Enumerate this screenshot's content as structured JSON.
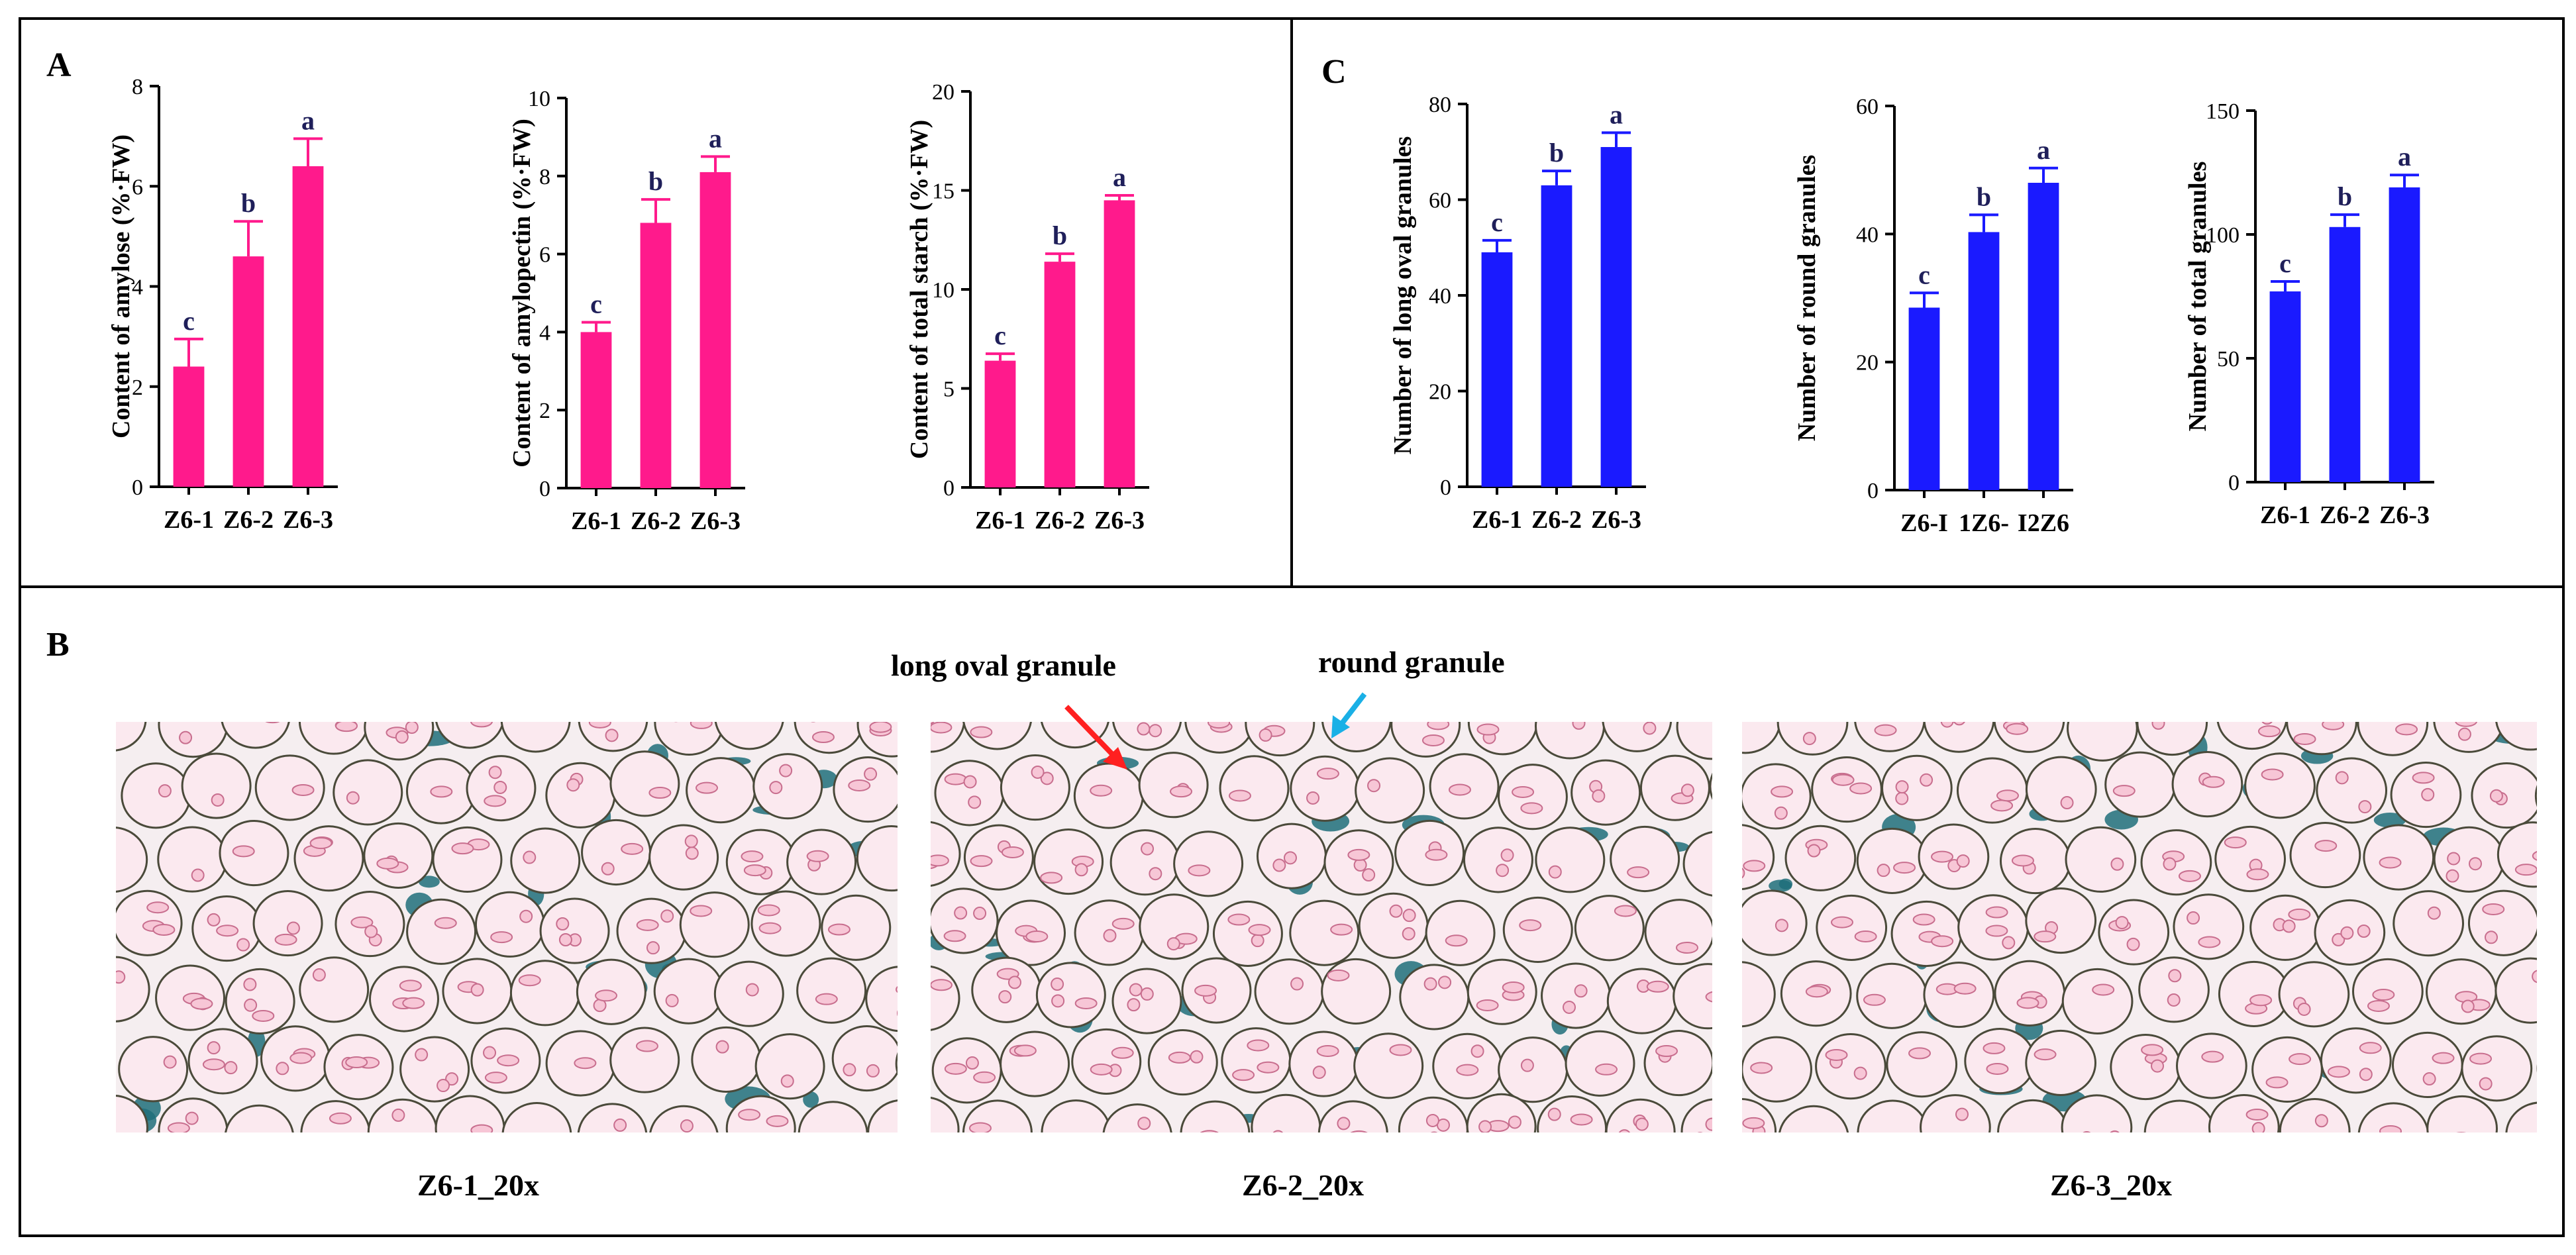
{
  "panels": {
    "A": "A",
    "B": "B",
    "C": "C"
  },
  "colors": {
    "panel_a_bars": "#ff1a8c",
    "panel_c_bars": "#1a1aff",
    "sig_letters": "#1f1f5a",
    "red_arrow": "#ff2020",
    "cyan_arrow": "#1ab0e6"
  },
  "chart_data": [
    {
      "type": "bar",
      "panel": "A",
      "ylabel": "Content of amylose (%·FW)",
      "categories": [
        "Z6-1",
        "Z6-2",
        "Z6-3"
      ],
      "values": [
        2.4,
        4.6,
        6.4
      ],
      "errors": [
        0.55,
        0.7,
        0.55
      ],
      "significance": [
        "c",
        "b",
        "a"
      ],
      "ylim": [
        0,
        8
      ],
      "yticks": [
        0,
        2,
        4,
        6,
        8
      ]
    },
    {
      "type": "bar",
      "panel": "A",
      "ylabel": "Content of amylopectin (%·FW)",
      "categories": [
        "Z6-1",
        "Z6-2",
        "Z6-3"
      ],
      "values": [
        4.0,
        6.8,
        8.1
      ],
      "errors": [
        0.25,
        0.6,
        0.4
      ],
      "significance": [
        "c",
        "b",
        "a"
      ],
      "ylim": [
        0,
        10
      ],
      "yticks": [
        0,
        2,
        4,
        6,
        8,
        10
      ]
    },
    {
      "type": "bar",
      "panel": "A",
      "ylabel": "Content of total starch (%·FW)",
      "categories": [
        "Z6-1",
        "Z6-2",
        "Z6-3"
      ],
      "values": [
        6.4,
        11.4,
        14.5
      ],
      "errors": [
        0.35,
        0.4,
        0.25
      ],
      "significance": [
        "c",
        "b",
        "a"
      ],
      "ylim": [
        0,
        20
      ],
      "yticks": [
        0,
        5,
        10,
        15,
        20
      ]
    },
    {
      "type": "bar",
      "panel": "C",
      "ylabel": "Number of long oval granules",
      "categories": [
        "Z6-1",
        "Z6-2",
        "Z6-3"
      ],
      "values": [
        49,
        63,
        71
      ],
      "errors": [
        2.5,
        3,
        3
      ],
      "significance": [
        "c",
        "b",
        "a"
      ],
      "ylim": [
        0,
        80
      ],
      "yticks": [
        0,
        20,
        40,
        60,
        80
      ]
    },
    {
      "type": "bar",
      "panel": "C",
      "ylabel": "Number of round granules",
      "categories": [
        "Z6-I",
        "1Z6-",
        "I2Z6"
      ],
      "values": [
        28.5,
        40.3,
        48
      ],
      "errors": [
        2.3,
        2.7,
        2.3
      ],
      "significance": [
        "c",
        "b",
        "a"
      ],
      "ylim": [
        0,
        60
      ],
      "yticks": [
        0,
        20,
        40,
        60
      ]
    },
    {
      "type": "bar",
      "panel": "C",
      "ylabel": "Number of total granules",
      "categories": [
        "Z6-1",
        "Z6-2",
        "Z6-3"
      ],
      "values": [
        77,
        103,
        119
      ],
      "errors": [
        4,
        5,
        5
      ],
      "significance": [
        "c",
        "b",
        "a"
      ],
      "ylim": [
        0,
        150
      ],
      "yticks": [
        0,
        50,
        100,
        150
      ]
    }
  ],
  "micrographs": {
    "annotations": {
      "long_oval": "long oval granule",
      "round": "round granule"
    },
    "captions": [
      "Z6-1_20x",
      "Z6-2_20x",
      "Z6-3_20x"
    ]
  }
}
